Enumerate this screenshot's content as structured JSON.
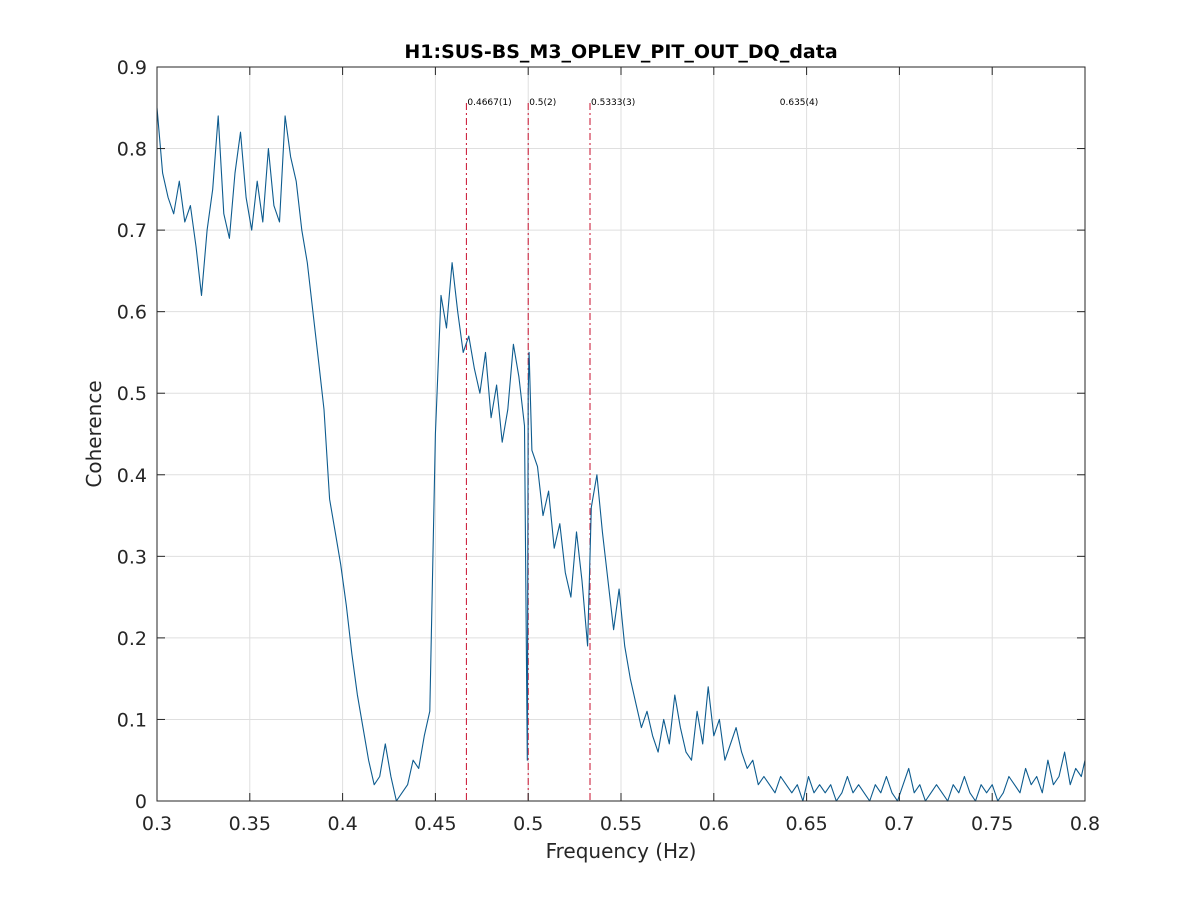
{
  "chart_data": {
    "type": "line",
    "title": "H1:SUS-BS_M3_OPLEV_PIT_OUT_DQ_data",
    "xlabel": "Frequency (Hz)",
    "ylabel": "Coherence",
    "xlim": [
      0.3,
      0.8
    ],
    "ylim": [
      0,
      0.9
    ],
    "xticks": [
      0.3,
      0.35,
      0.4,
      0.45,
      0.5,
      0.55,
      0.6,
      0.65,
      0.7,
      0.75,
      0.8
    ],
    "xtick_labels": [
      "0.3",
      "0.35",
      "0.4",
      "0.45",
      "0.5",
      "0.55",
      "0.6",
      "0.65",
      "0.7",
      "0.75",
      "0.8"
    ],
    "yticks": [
      0,
      0.1,
      0.2,
      0.3,
      0.4,
      0.5,
      0.6,
      0.7,
      0.8,
      0.9
    ],
    "ytick_labels": [
      "0",
      "0.1",
      "0.2",
      "0.3",
      "0.4",
      "0.5",
      "0.6",
      "0.7",
      "0.8",
      "0.9"
    ],
    "grid": true,
    "line_color": "#0e5c8f",
    "marker_color": "#c8102e",
    "markers": [
      {
        "x": 0.4667,
        "label": "0.4667(1)",
        "line": true
      },
      {
        "x": 0.5,
        "label": "0.5(2)",
        "line": true
      },
      {
        "x": 0.5333,
        "label": "0.5333(3)",
        "line": true
      },
      {
        "x": 0.635,
        "label": "0.635(4)",
        "line": false
      }
    ],
    "series": [
      {
        "x": [
          0.3,
          0.303,
          0.306,
          0.309,
          0.312,
          0.315,
          0.318,
          0.321,
          0.324,
          0.327,
          0.33,
          0.333,
          0.336,
          0.339,
          0.342,
          0.345,
          0.348,
          0.351,
          0.354,
          0.357,
          0.36,
          0.363,
          0.366,
          0.369,
          0.372,
          0.375,
          0.378,
          0.381,
          0.384,
          0.387,
          0.39,
          0.393,
          0.396,
          0.399,
          0.402,
          0.405,
          0.408,
          0.411,
          0.414,
          0.417,
          0.42,
          0.423,
          0.426,
          0.429,
          0.432,
          0.435,
          0.438,
          0.441,
          0.444,
          0.447,
          0.45,
          0.453,
          0.456,
          0.459,
          0.462,
          0.465,
          0.468,
          0.471,
          0.474,
          0.477,
          0.48,
          0.483,
          0.486,
          0.489,
          0.492,
          0.495,
          0.498,
          0.4995,
          0.5,
          0.5005,
          0.502,
          0.505,
          0.508,
          0.511,
          0.514,
          0.517,
          0.52,
          0.523,
          0.526,
          0.529,
          0.532,
          0.534,
          0.537,
          0.54,
          0.543,
          0.546,
          0.549,
          0.552,
          0.555,
          0.558,
          0.561,
          0.564,
          0.567,
          0.57,
          0.573,
          0.576,
          0.579,
          0.582,
          0.585,
          0.588,
          0.591,
          0.594,
          0.597,
          0.6,
          0.603,
          0.606,
          0.609,
          0.612,
          0.615,
          0.618,
          0.621,
          0.624,
          0.627,
          0.63,
          0.633,
          0.636,
          0.639,
          0.642,
          0.645,
          0.648,
          0.651,
          0.654,
          0.657,
          0.66,
          0.663,
          0.666,
          0.669,
          0.672,
          0.675,
          0.678,
          0.681,
          0.684,
          0.687,
          0.69,
          0.693,
          0.696,
          0.699,
          0.702,
          0.705,
          0.708,
          0.711,
          0.714,
          0.717,
          0.72,
          0.723,
          0.726,
          0.729,
          0.732,
          0.735,
          0.738,
          0.741,
          0.744,
          0.747,
          0.75,
          0.753,
          0.756,
          0.759,
          0.762,
          0.765,
          0.768,
          0.771,
          0.774,
          0.777,
          0.78,
          0.783,
          0.786,
          0.789,
          0.792,
          0.795,
          0.798,
          0.8
        ],
        "y": [
          0.85,
          0.77,
          0.74,
          0.72,
          0.76,
          0.71,
          0.73,
          0.68,
          0.62,
          0.7,
          0.75,
          0.84,
          0.72,
          0.69,
          0.77,
          0.82,
          0.74,
          0.7,
          0.76,
          0.71,
          0.8,
          0.73,
          0.71,
          0.84,
          0.79,
          0.76,
          0.7,
          0.66,
          0.6,
          0.54,
          0.48,
          0.37,
          0.33,
          0.29,
          0.24,
          0.18,
          0.13,
          0.09,
          0.05,
          0.02,
          0.03,
          0.07,
          0.03,
          0.0,
          0.01,
          0.02,
          0.05,
          0.04,
          0.08,
          0.11,
          0.45,
          0.62,
          0.58,
          0.66,
          0.6,
          0.55,
          0.57,
          0.53,
          0.5,
          0.55,
          0.47,
          0.51,
          0.44,
          0.48,
          0.56,
          0.52,
          0.46,
          0.05,
          0.5,
          0.55,
          0.43,
          0.41,
          0.35,
          0.38,
          0.31,
          0.34,
          0.28,
          0.25,
          0.33,
          0.27,
          0.19,
          0.36,
          0.4,
          0.33,
          0.27,
          0.21,
          0.26,
          0.19,
          0.15,
          0.12,
          0.09,
          0.11,
          0.08,
          0.06,
          0.1,
          0.07,
          0.13,
          0.09,
          0.06,
          0.05,
          0.11,
          0.07,
          0.14,
          0.08,
          0.1,
          0.05,
          0.07,
          0.09,
          0.06,
          0.04,
          0.05,
          0.02,
          0.03,
          0.02,
          0.01,
          0.03,
          0.02,
          0.01,
          0.02,
          0.0,
          0.03,
          0.01,
          0.02,
          0.01,
          0.02,
          0.0,
          0.01,
          0.03,
          0.01,
          0.02,
          0.01,
          0.0,
          0.02,
          0.01,
          0.03,
          0.01,
          0.0,
          0.02,
          0.04,
          0.01,
          0.02,
          0.0,
          0.01,
          0.02,
          0.01,
          0.0,
          0.02,
          0.01,
          0.03,
          0.01,
          0.0,
          0.02,
          0.01,
          0.02,
          0.0,
          0.01,
          0.03,
          0.02,
          0.01,
          0.04,
          0.02,
          0.03,
          0.01,
          0.05,
          0.02,
          0.03,
          0.06,
          0.02,
          0.04,
          0.03,
          0.05
        ]
      }
    ]
  }
}
